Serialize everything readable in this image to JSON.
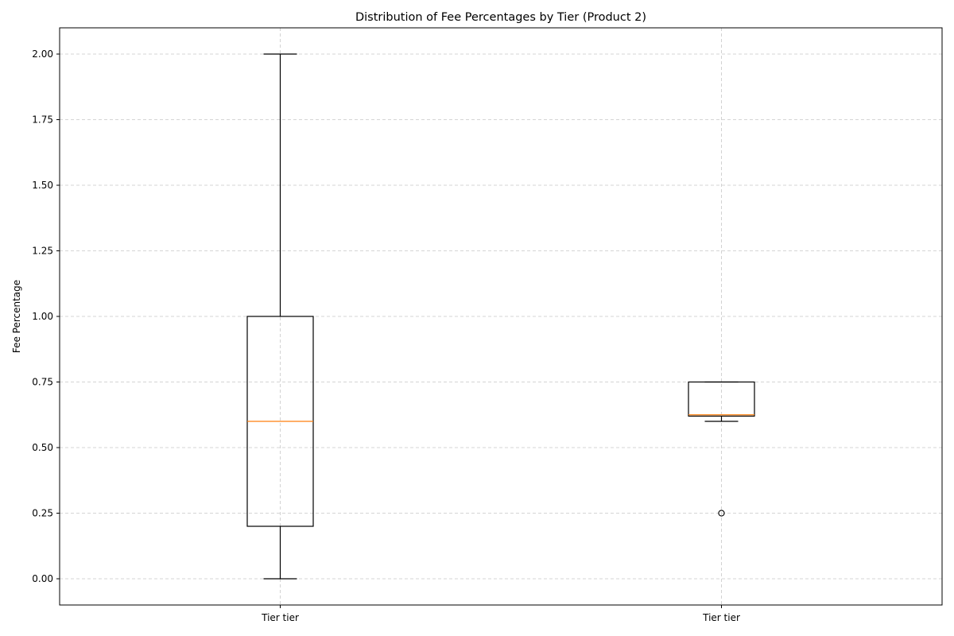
{
  "chart_data": {
    "type": "box",
    "title": "Distribution of Fee Percentages by Tier (Product 2)",
    "xlabel": "",
    "ylabel": "Fee Percentage",
    "ylim": [
      -0.1,
      2.1
    ],
    "yticks": [
      0.0,
      0.25,
      0.5,
      0.75,
      1.0,
      1.25,
      1.5,
      1.75,
      2.0
    ],
    "ytick_labels": [
      "0.00",
      "0.25",
      "0.50",
      "0.75",
      "1.00",
      "1.25",
      "1.50",
      "1.75",
      "2.00"
    ],
    "grid": true,
    "categories": [
      "Tier tier",
      "Tier tier"
    ],
    "boxes": [
      {
        "whisker_low": 0.0,
        "q1": 0.2,
        "median": 0.6,
        "q3": 1.0,
        "whisker_high": 2.0,
        "outliers": []
      },
      {
        "whisker_low": 0.6,
        "q1": 0.62,
        "median": 0.625,
        "q3": 0.75,
        "whisker_high": 0.75,
        "outliers": [
          0.25
        ]
      }
    ],
    "colors": {
      "box": "#000000",
      "median": "#ff7f0e",
      "grid": "#c8c8c8"
    }
  }
}
